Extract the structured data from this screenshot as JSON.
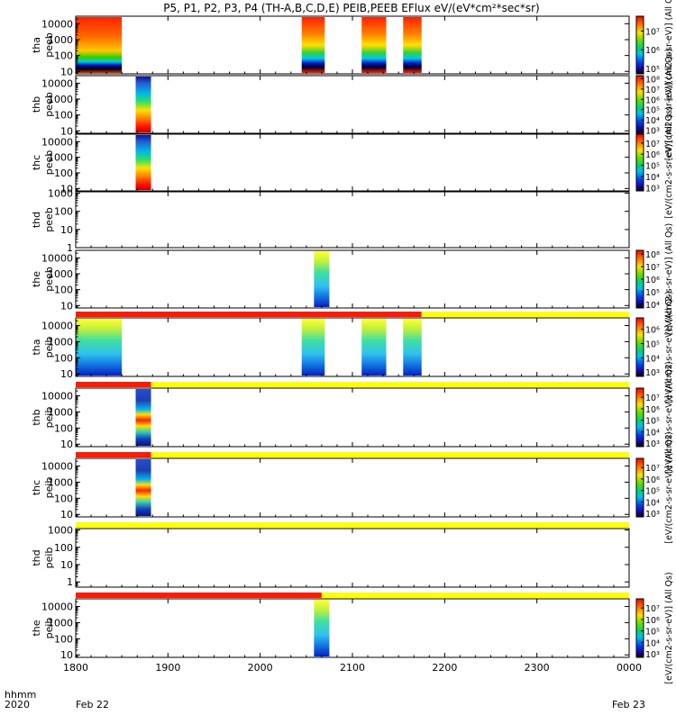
{
  "title": "P5, P1, P2, P3, P4 (TH-A,B,C,D,E) PEIB,PEEB EFlux eV/(eV*cm²*sec*sr)",
  "footer": {
    "left_label_1": "hhmm",
    "left_label_2": "2020",
    "end_label": "Feb 23"
  },
  "chart_data": {
    "type": "heatmap",
    "x_axis": {
      "ticks": [
        "1800",
        "1900",
        "2000",
        "2100",
        "2200",
        "2300",
        "0000"
      ],
      "tick_values_min": [
        0,
        60,
        120,
        180,
        240,
        300,
        360
      ],
      "start_date": "Feb 22",
      "end_date": "Feb 23",
      "xlim_min": [
        0,
        360
      ]
    },
    "panels": [
      {
        "id": "tha-peeb",
        "label_1": "tha",
        "label_2": "peeb",
        "ylim": [
          7,
          30000
        ],
        "yticks": [
          "10",
          "100",
          "1000",
          "10000"
        ],
        "colorbar": {
          "label": "[eV/(cm2-s-sr-eV)] (All Qs)",
          "ticks": [
            "10⁵",
            "10⁶",
            "10⁷"
          ],
          "log_min": 4.7,
          "log_max": 7.8
        },
        "segments": [
          {
            "t0": 0,
            "t1": 30,
            "palette": "hot"
          },
          {
            "t0": 147,
            "t1": 162,
            "palette": "band"
          },
          {
            "t0": 186,
            "t1": 202,
            "palette": "band"
          },
          {
            "t0": 213,
            "t1": 225,
            "palette": "band"
          }
        ]
      },
      {
        "id": "thb-peeb",
        "label_1": "thb",
        "label_2": "peeb",
        "ylim": [
          7,
          30000
        ],
        "yticks": [
          "10",
          "100",
          "1000",
          "10000"
        ],
        "colorbar": {
          "label": "[eV/(cm2-s-sr-eV)] (All Qs)",
          "ticks": [
            "10³",
            "10⁴",
            "10⁵",
            "10⁶",
            "10⁷",
            "10⁸"
          ],
          "log_min": 2.7,
          "log_max": 8.3
        },
        "segments": [
          {
            "t0": 39,
            "t1": 49,
            "palette": "cold"
          }
        ]
      },
      {
        "id": "thc-peeb",
        "label_1": "thc",
        "label_2": "peeb",
        "ylim": [
          7,
          30000
        ],
        "yticks": [
          "10",
          "100",
          "1000",
          "10000"
        ],
        "colorbar": {
          "label": "[eV/(cm2-s-sr-eV)] (All Qs)",
          "ticks": [
            "10³",
            "10⁴",
            "10⁵",
            "10⁶",
            "10⁷"
          ],
          "log_min": 2.7,
          "log_max": 7.8
        },
        "segments": [
          {
            "t0": 39,
            "t1": 49,
            "palette": "cold"
          }
        ]
      },
      {
        "id": "thd-peeb",
        "label_1": "thd",
        "label_2": "peeb",
        "ylim": [
          1,
          1200
        ],
        "yticks": [
          "1",
          "10",
          "100",
          "1000"
        ],
        "colorbar": null,
        "segments": []
      },
      {
        "id": "the-peeb",
        "label_1": "the",
        "label_2": "peeb",
        "ylim": [
          7,
          30000
        ],
        "yticks": [
          "10",
          "100",
          "1000",
          "10000"
        ],
        "colorbar": {
          "label": "[eV/(cm2-s-sr-eV)] (All Qs)",
          "ticks": [
            "10⁴",
            "10⁵",
            "10⁶",
            "10⁷",
            "10⁸"
          ],
          "log_min": 3.7,
          "log_max": 8.3
        },
        "segments": [
          {
            "t0": 155,
            "t1": 165,
            "palette": "ion"
          }
        ]
      },
      {
        "id": "tha-peib",
        "label_1": "tha",
        "label_2": "peib",
        "ylim": [
          7,
          30000
        ],
        "yticks": [
          "10",
          "100",
          "1000",
          "10000"
        ],
        "colorbar": {
          "label": "[eV/(cm2-s-sr-eV)] (All Qs)",
          "ticks": [
            "10³",
            "10⁴",
            "10⁵",
            "10⁶"
          ],
          "log_min": 2.7,
          "log_max": 6.8
        },
        "segments": [
          {
            "t0": 0,
            "t1": 30,
            "palette": "ion"
          },
          {
            "t0": 147,
            "t1": 162,
            "palette": "ion"
          },
          {
            "t0": 186,
            "t1": 202,
            "palette": "ion"
          },
          {
            "t0": 213,
            "t1": 225,
            "palette": "ion"
          }
        ],
        "mode_bar": {
          "red_until": 225
        }
      },
      {
        "id": "thb-peib",
        "label_1": "thb",
        "label_2": "peib",
        "ylim": [
          7,
          30000
        ],
        "yticks": [
          "10",
          "100",
          "1000",
          "10000"
        ],
        "colorbar": {
          "label": "[eV/(cm2-s-sr-eV)] (All Qs)",
          "ticks": [
            "10³",
            "10⁴",
            "10⁵",
            "10⁶",
            "10⁷"
          ],
          "log_min": 2.7,
          "log_max": 7.8
        },
        "segments": [
          {
            "t0": 39,
            "t1": 49,
            "palette": "speck"
          }
        ],
        "mode_bar": {
          "red_until": 49
        }
      },
      {
        "id": "thc-peib",
        "label_1": "thc",
        "label_2": "peib",
        "ylim": [
          7,
          30000
        ],
        "yticks": [
          "10",
          "100",
          "1000",
          "10000"
        ],
        "colorbar": {
          "label": "[eV/(cm2-s-sr-eV)] (All Qs)",
          "ticks": [
            "10³",
            "10⁴",
            "10⁵",
            "10⁶",
            "10⁷"
          ],
          "log_min": 2.7,
          "log_max": 7.8
        },
        "segments": [
          {
            "t0": 39,
            "t1": 49,
            "palette": "speck"
          }
        ],
        "mode_bar": {
          "red_until": 49
        }
      },
      {
        "id": "thd-peib",
        "label_1": "thd",
        "label_2": "peib",
        "ylim": [
          0.5,
          1200
        ],
        "yticks": [
          "1",
          "10",
          "100",
          "1000"
        ],
        "colorbar": null,
        "segments": [],
        "mode_bar": {
          "red_until": 0
        }
      },
      {
        "id": "the-peib",
        "label_1": "the",
        "label_2": "peib",
        "ylim": [
          7,
          30000
        ],
        "yticks": [
          "10",
          "100",
          "1000",
          "10000"
        ],
        "colorbar": {
          "label": "[eV/(cm2-s-sr-eV)] (All Qs)",
          "ticks": [
            "10³",
            "10⁴",
            "10⁵",
            "10⁶",
            "10⁷"
          ],
          "log_min": 2.7,
          "log_max": 7.8
        },
        "segments": [
          {
            "t0": 155,
            "t1": 165,
            "palette": "ion"
          }
        ],
        "mode_bar": {
          "red_until": 160
        }
      }
    ],
    "colors": {
      "mode_red": "#ff1a00",
      "mode_yellow": "#ffff00",
      "axis": "#000000"
    }
  }
}
